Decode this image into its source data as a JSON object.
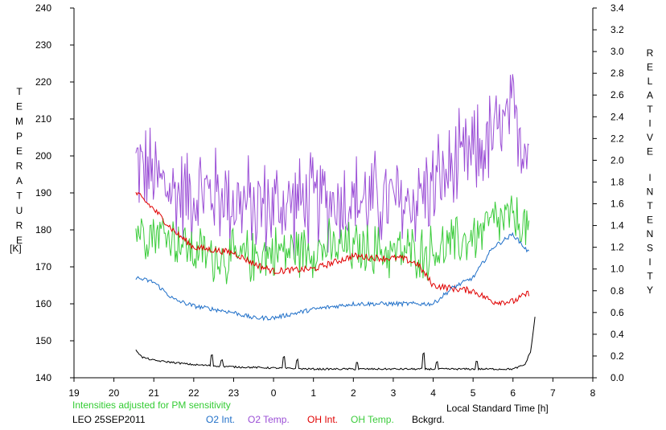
{
  "chart_data": {
    "type": "line",
    "station": "LEO 25SEP2011",
    "note": "Intensities adjusted for PM sensitivity",
    "xlabel": "Local Standard Time [h]",
    "ylabel_left_letters": [
      "T",
      "E",
      "M",
      "P",
      "E",
      "R",
      "A",
      "T",
      "U",
      "R",
      "E"
    ],
    "ylabel_left_unit": "[K]",
    "ylabel_right_words": [
      [
        "R",
        "E",
        "L",
        "A",
        "T",
        "I",
        "V",
        "E"
      ],
      [
        "I",
        "N",
        "T",
        "E",
        "N",
        "S",
        "I",
        "T",
        "Y"
      ]
    ],
    "x_ticks": [
      "19",
      "20",
      "21",
      "22",
      "23",
      "0",
      "1",
      "2",
      "3",
      "4",
      "5",
      "6",
      "7",
      "8"
    ],
    "xlim": [
      19,
      32
    ],
    "ylim_left": [
      140,
      240
    ],
    "left_ticks": [
      140,
      150,
      160,
      170,
      180,
      190,
      200,
      210,
      220,
      230,
      240
    ],
    "ylim_right": [
      0.0,
      3.4
    ],
    "right_ticks": [
      "0.0",
      "0.2",
      "0.4",
      "0.6",
      "0.8",
      "1.0",
      "1.2",
      "1.4",
      "1.6",
      "1.8",
      "2.0",
      "2.2",
      "2.4",
      "2.6",
      "2.8",
      "3.0",
      "3.2",
      "3.4"
    ],
    "grid": false,
    "legend_position": "bottom",
    "colors": {
      "O2 Int.": "#1f6fc8",
      "O2 Temp.": "#9b4fd6",
      "OH Int.": "#e00000",
      "OH Temp.": "#3ccc3c",
      "Bckgrd.": "#000000",
      "note": "#33cc33"
    },
    "series": [
      {
        "name": "O2 Temp.",
        "axis": "left",
        "noise": 11,
        "x": [
          20.55,
          21.5,
          22.5,
          23.5,
          24.5,
          25.5,
          26.5,
          27.3,
          28,
          28.5,
          29,
          29.5,
          30,
          30.4
        ],
        "values": [
          198,
          190,
          190,
          186,
          187,
          188,
          188,
          187,
          192,
          196,
          200,
          205,
          210,
          203
        ]
      },
      {
        "name": "OH Temp.",
        "axis": "left",
        "noise": 6,
        "x": [
          20.55,
          21,
          21.5,
          22,
          23,
          24,
          25,
          26,
          27,
          28,
          28.5,
          29,
          29.5,
          30,
          30.4
        ],
        "values": [
          180,
          180,
          178,
          174,
          172,
          174,
          175,
          175,
          174,
          174,
          176,
          178,
          182,
          183,
          180
        ]
      },
      {
        "name": "OH Int.",
        "axis": "right",
        "noise": 0.03,
        "x": [
          20.55,
          21,
          21.5,
          22,
          23,
          23.5,
          24,
          25,
          26,
          26.7,
          27.2,
          27.6,
          28,
          28.5,
          29,
          29.5,
          30,
          30.4
        ],
        "values": [
          1.7,
          1.55,
          1.35,
          1.2,
          1.15,
          1.05,
          0.98,
          1.0,
          1.12,
          1.1,
          1.1,
          1.05,
          0.85,
          0.82,
          0.8,
          0.7,
          0.7,
          0.78
        ]
      },
      {
        "name": "O2 Int.",
        "axis": "right",
        "noise": 0.02,
        "x": [
          20.55,
          21,
          21.5,
          22,
          23,
          23.5,
          24,
          25,
          26,
          27,
          27.5,
          28,
          28.5,
          29,
          29.5,
          30,
          30.4
        ],
        "values": [
          0.92,
          0.88,
          0.72,
          0.66,
          0.6,
          0.55,
          0.55,
          0.63,
          0.68,
          0.68,
          0.68,
          0.68,
          0.83,
          0.92,
          1.2,
          1.32,
          1.15
        ]
      },
      {
        "name": "Bckgrd.",
        "axis": "right",
        "noise": 0.008,
        "x": [
          20.55,
          20.7,
          21,
          22,
          23,
          24,
          25,
          26,
          27,
          28,
          29,
          30,
          30.3,
          30.45,
          30.55
        ],
        "values": [
          0.26,
          0.19,
          0.16,
          0.12,
          0.1,
          0.09,
          0.08,
          0.08,
          0.08,
          0.08,
          0.08,
          0.08,
          0.12,
          0.25,
          0.56
        ]
      }
    ],
    "spikes": {
      "Bckgrd.": [
        [
          22.45,
          0.1
        ],
        [
          22.7,
          0.06
        ],
        [
          24.25,
          0.1
        ],
        [
          24.6,
          0.08
        ],
        [
          26.1,
          0.06
        ],
        [
          27.75,
          0.14
        ],
        [
          28.1,
          0.06
        ],
        [
          29.1,
          0.07
        ]
      ]
    }
  }
}
